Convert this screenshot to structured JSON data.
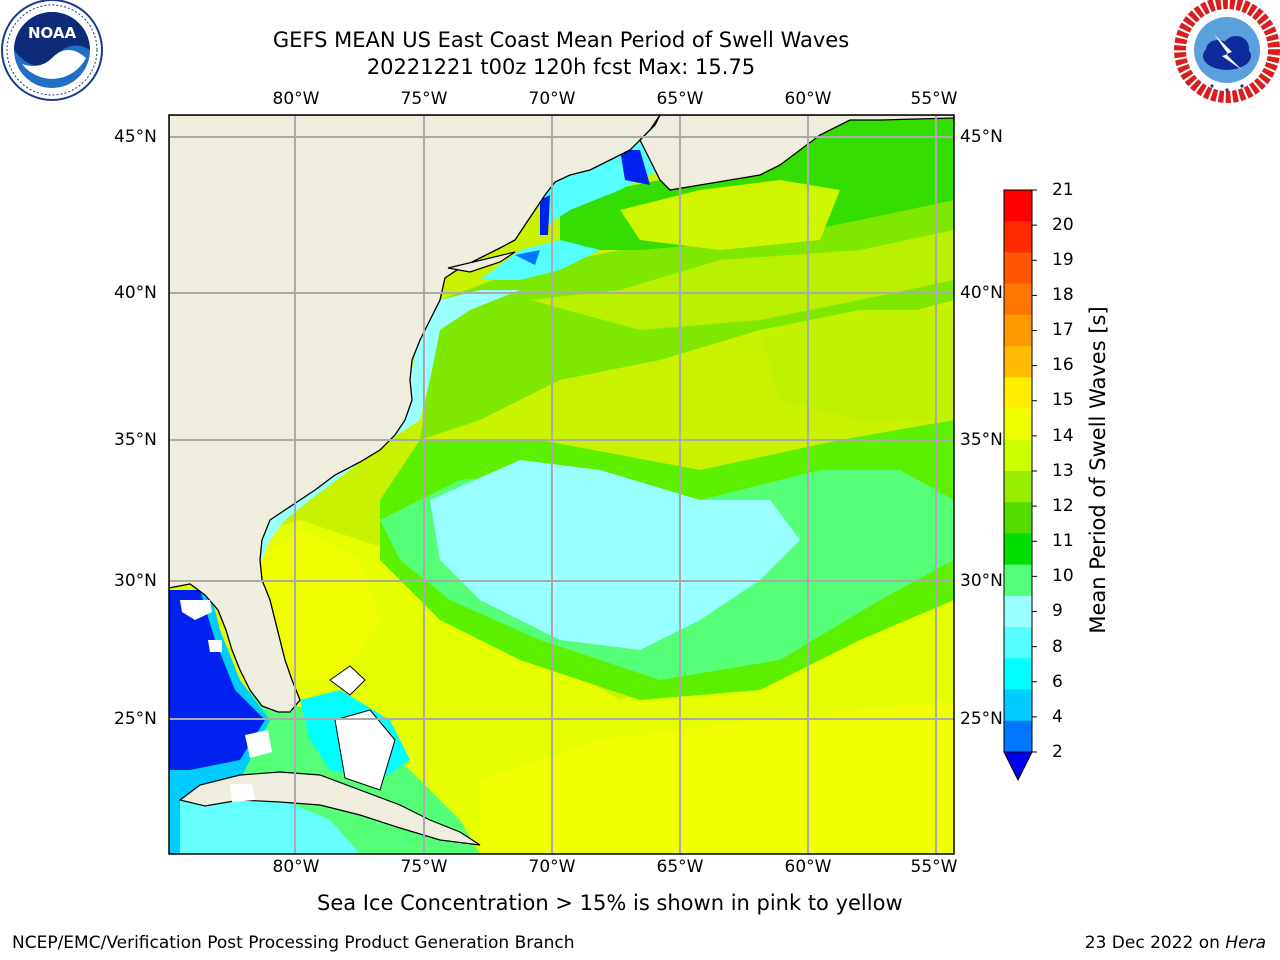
{
  "header": {
    "title_line1": "GEFS MEAN US East Coast Mean Period of Swell Waves",
    "title_line2": "20221221 t00z 120h fcst   Max: 15.75"
  },
  "logos": {
    "left": {
      "name": "NOAA",
      "icon": "noaa-logo",
      "text": "NOAA",
      "ring_text": "NATIONAL OCEANIC AND ATMOSPHERIC ADMINISTRATION · U.S. DEPARTMENT OF COMMERCE"
    },
    "right": {
      "name": "National Weather Service",
      "icon": "nws-logo",
      "ring_text": "NATIONAL WEATHER SERVICE"
    }
  },
  "map": {
    "region": "US East Coast / Western North Atlantic",
    "lon_labels": [
      "80°W",
      "75°W",
      "70°W",
      "65°W",
      "60°W",
      "55°W"
    ],
    "lat_labels": [
      "45°N",
      "40°N",
      "35°N",
      "30°N",
      "25°N"
    ],
    "grid": true,
    "colors": {
      "land": "#efedde",
      "coast": "#000000",
      "grid": "#aaaaaa"
    }
  },
  "colorbar": {
    "label": "Mean Period of Swell Waves [s]",
    "ticks": [
      "21",
      "20",
      "19",
      "18",
      "17",
      "16",
      "15",
      "14",
      "13",
      "12",
      "11",
      "10",
      "9",
      "8",
      "6",
      "4",
      "2"
    ],
    "colors_top_to_bottom": [
      "#ff0000",
      "#ff2a00",
      "#ff5500",
      "#ff7700",
      "#ff9900",
      "#ffbb00",
      "#ffee00",
      "#f0ff00",
      "#ccff00",
      "#99ee00",
      "#55dd00",
      "#00dd00",
      "#55ff77",
      "#99ffff",
      "#55ffff",
      "#00ffff",
      "#00ccff",
      "#0077ff"
    ],
    "extend_color": "#0000ee"
  },
  "footer": {
    "ice_note": "Sea Ice Concentration > 15% is shown in pink to yellow",
    "left": "NCEP/EMC/Verification Post Processing Product Generation Branch",
    "right_date": "23 Dec 2022 on",
    "right_machine": "Hera"
  }
}
